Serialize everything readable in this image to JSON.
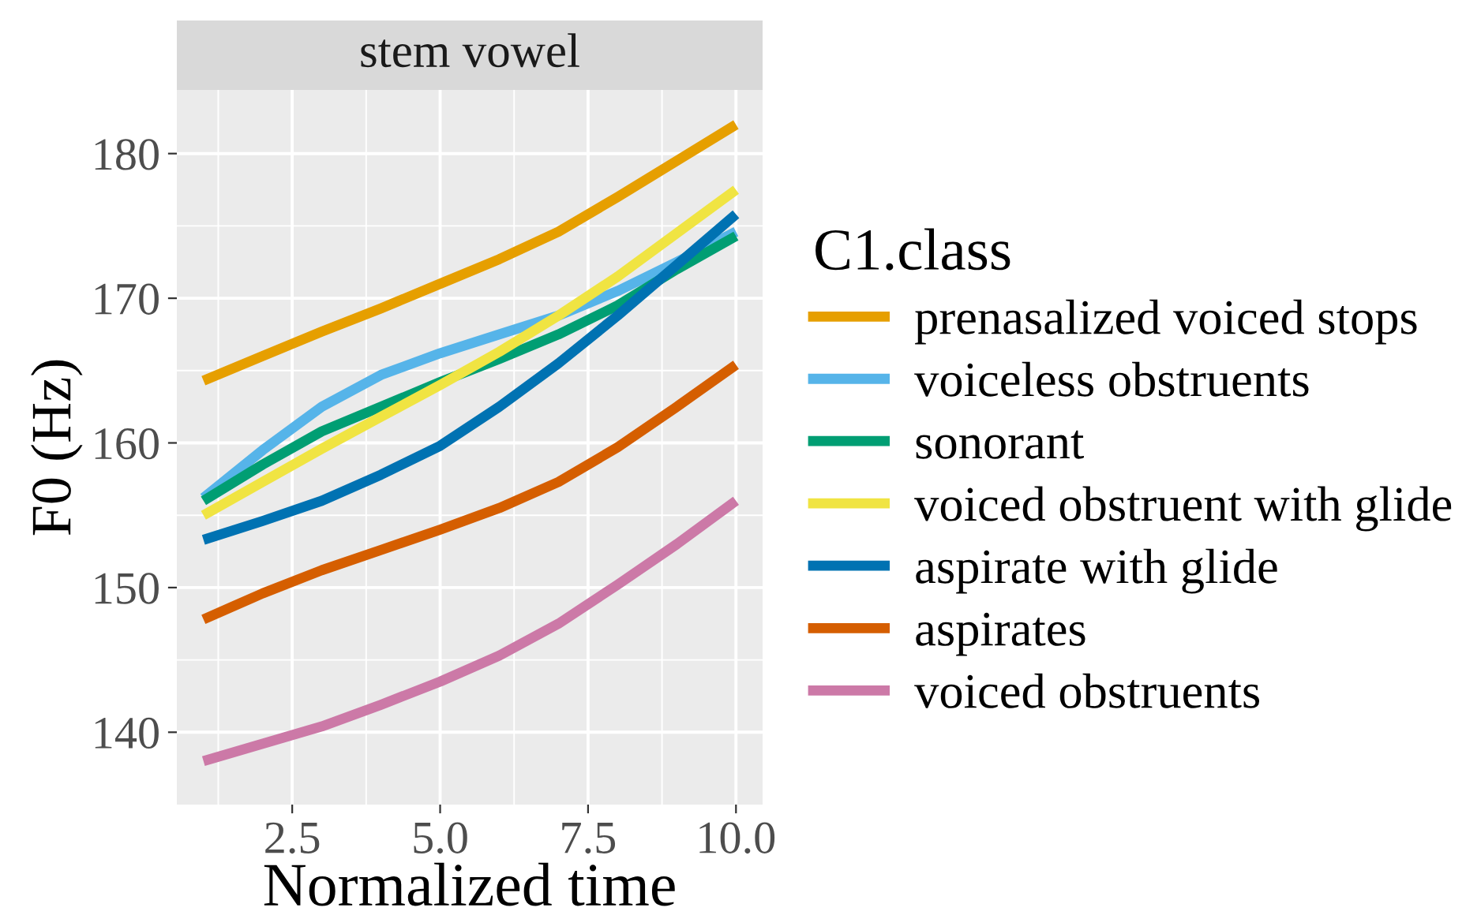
{
  "chart_data": {
    "type": "line",
    "title": "stem vowel",
    "xlabel": "Normalized time",
    "ylabel": "F0 (Hz)",
    "legend_title": "C1.class",
    "x": [
      1,
      2,
      3,
      4,
      5,
      6,
      7,
      8,
      9,
      10
    ],
    "xlim": [
      0.55,
      10.45
    ],
    "xticks": [
      2.5,
      {
        "value": 5,
        "label": "5.0"
      },
      7.5,
      {
        "value": 10,
        "label": "10.0"
      }
    ],
    "ylim": [
      135,
      184.4
    ],
    "yticks": [
      140,
      150,
      160,
      170,
      180
    ],
    "grid": true,
    "legend": "right",
    "line_style": "solid",
    "series": [
      {
        "name": "prenasalized voiced stops",
        "color": "#e69f00",
        "values": [
          164.3,
          166,
          167.7,
          169.3,
          171,
          172.7,
          174.6,
          177,
          179.5,
          182
        ]
      },
      {
        "name": "voiceless obstruents",
        "color": "#56b4e9",
        "values": [
          156.2,
          159.5,
          162.5,
          164.7,
          166.2,
          167.5,
          168.8,
          170.5,
          172.5,
          174.6
        ]
      },
      {
        "name": "sonorant",
        "color": "#009e73",
        "values": [
          156,
          158.5,
          160.8,
          162.5,
          164.2,
          165.8,
          167.5,
          169.5,
          172,
          174.3
        ]
      },
      {
        "name": "voiced obstruent with glide",
        "color": "#f0e442",
        "values": [
          155,
          157.3,
          159.6,
          161.8,
          164,
          166.3,
          168.8,
          171.5,
          174.5,
          177.5
        ]
      },
      {
        "name": "aspirate with glide",
        "color": "#0072b2",
        "values": [
          153.3,
          154.6,
          156,
          157.8,
          159.8,
          162.5,
          165.5,
          168.8,
          172.3,
          175.8
        ]
      },
      {
        "name": "aspirates",
        "color": "#d55e00",
        "values": [
          147.8,
          149.6,
          151.2,
          152.6,
          154,
          155.5,
          157.3,
          159.7,
          162.5,
          165.4
        ]
      },
      {
        "name": "voiced obstruents",
        "color": "#cc79a7",
        "values": [
          138,
          139.2,
          140.4,
          141.9,
          143.5,
          145.3,
          147.5,
          150.2,
          153,
          156
        ]
      }
    ]
  }
}
